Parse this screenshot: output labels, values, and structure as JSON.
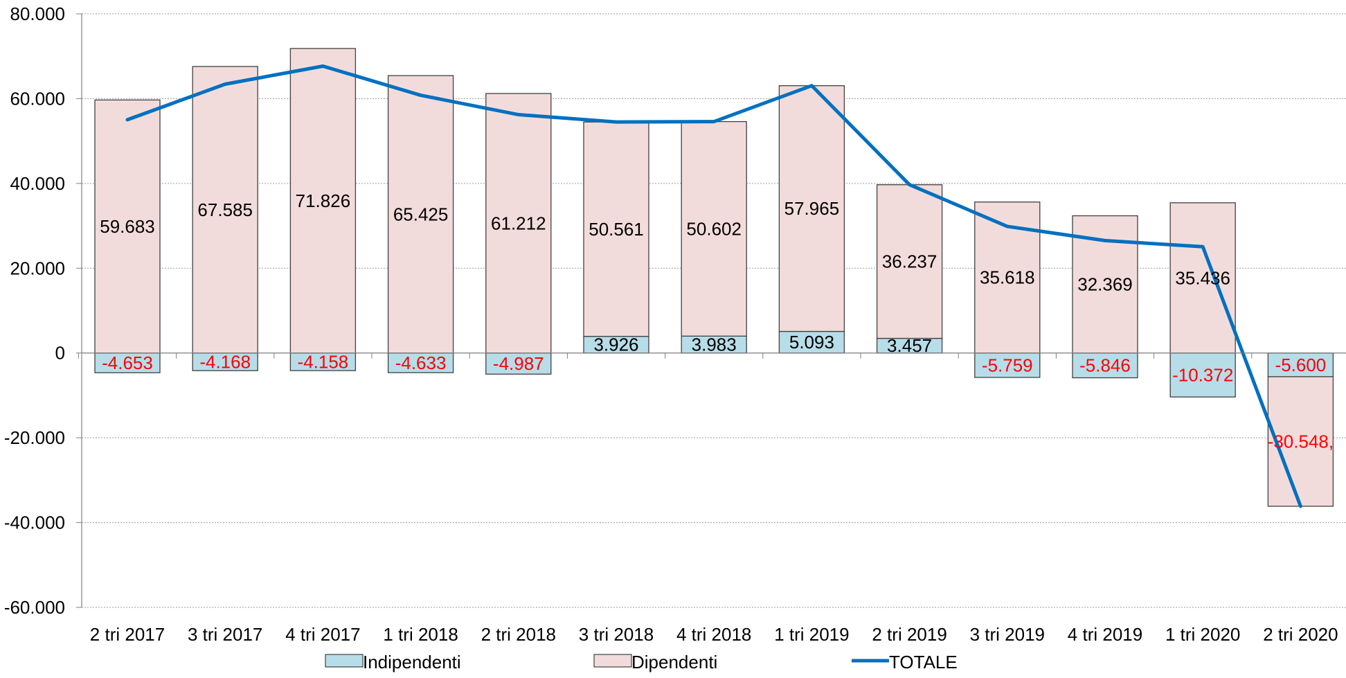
{
  "chart_data": {
    "type": "bar",
    "stacked": true,
    "categories": [
      "2 tri 2017",
      "3 tri 2017",
      "4 tri 2017",
      "1 tri 2018",
      "2 tri 2018",
      "3 tri 2018",
      "4 tri 2018",
      "1 tri 2019",
      "2 tri 2019",
      "3 tri 2019",
      "4 tri 2019",
      "1 tri 2020",
      "2 tri 2020"
    ],
    "series": [
      {
        "name": "Indipendenti",
        "kind": "bar",
        "color": "#b7dde8",
        "values": [
          -4653,
          -4168,
          -4158,
          -4633,
          -4987,
          3926,
          3983,
          5093,
          3457,
          -5759,
          -5846,
          -10372,
          -5600
        ],
        "labels": [
          "-4.653",
          "-4.168",
          "-4.158",
          "-4.633",
          "-4.987",
          "3.926",
          "3.983",
          "5.093",
          "3.457",
          "-5.759",
          "-5.846",
          "-10.372",
          "-5.600"
        ]
      },
      {
        "name": "Dipendenti",
        "kind": "bar",
        "color": "#f2dcdb",
        "values": [
          59683,
          67585,
          71826,
          65425,
          61212,
          50561,
          50602,
          57965,
          36237,
          35618,
          32369,
          35436,
          -30548
        ],
        "labels": [
          "59.683",
          "67.585",
          "71.826",
          "65.425",
          "61.212",
          "50.561",
          "50.602",
          "57.965",
          "36.237",
          "35.618",
          "32.369",
          "35.436",
          "-30.548,"
        ]
      },
      {
        "name": "TOTALE",
        "kind": "line",
        "color": "#0070c0",
        "values": [
          55030,
          63417,
          67668,
          60792,
          56225,
          54487,
          54585,
          63058,
          39694,
          29859,
          26523,
          25064,
          -36148
        ]
      }
    ],
    "ylim": [
      -60000,
      80000
    ],
    "yticks": [
      -60000,
      -40000,
      -20000,
      0,
      20000,
      40000,
      60000,
      80000
    ],
    "ytick_labels": [
      "-60.000",
      "-40.000",
      "-20.000",
      "0",
      "20.000",
      "40.000",
      "60.000",
      "80.000"
    ],
    "negative_label_color": "#ff0000",
    "positive_label_color": "#000000",
    "grid": true,
    "legend_position": "bottom",
    "title": "",
    "xlabel": "",
    "ylabel": ""
  }
}
